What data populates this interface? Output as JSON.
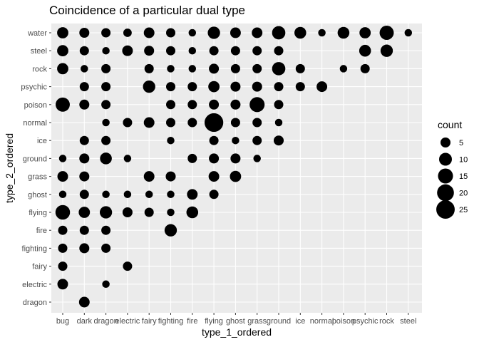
{
  "chart_data": {
    "type": "scatter",
    "title": "Coincidence of a particular dual type",
    "xlabel": "type_1_ordered",
    "ylabel": "type_2_ordered",
    "x_categories": [
      "bug",
      "dark",
      "dragon",
      "electric",
      "fairy",
      "fighting",
      "fire",
      "flying",
      "ghost",
      "grass",
      "ground",
      "ice",
      "normal",
      "poison",
      "psychic",
      "rock",
      "steel"
    ],
    "y_categories": [
      "dragon",
      "electric",
      "fairy",
      "fighting",
      "fire",
      "flying",
      "ghost",
      "grass",
      "ground",
      "ice",
      "normal",
      "poison",
      "psychic",
      "rock",
      "steel",
      "water"
    ],
    "size_variable": "count",
    "legend": {
      "title": "count",
      "values": [
        5,
        10,
        15,
        20,
        25
      ],
      "labels": [
        "5",
        "10",
        "15",
        "20",
        "25"
      ],
      "position": "right"
    },
    "grid": true,
    "points": [
      {
        "x": "bug",
        "y": "water",
        "count": 7
      },
      {
        "x": "dark",
        "y": "water",
        "count": 5
      },
      {
        "x": "dragon",
        "y": "water",
        "count": 4
      },
      {
        "x": "electric",
        "y": "water",
        "count": 3
      },
      {
        "x": "fairy",
        "y": "water",
        "count": 6
      },
      {
        "x": "fighting",
        "y": "water",
        "count": 4
      },
      {
        "x": "fire",
        "y": "water",
        "count": 2
      },
      {
        "x": "flying",
        "y": "water",
        "count": 9
      },
      {
        "x": "ghost",
        "y": "water",
        "count": 6
      },
      {
        "x": "grass",
        "y": "water",
        "count": 6
      },
      {
        "x": "ground",
        "y": "water",
        "count": 11
      },
      {
        "x": "ice",
        "y": "water",
        "count": 8
      },
      {
        "x": "normal",
        "y": "water",
        "count": 2
      },
      {
        "x": "poison",
        "y": "water",
        "count": 8
      },
      {
        "x": "psychic",
        "y": "water",
        "count": 7
      },
      {
        "x": "rock",
        "y": "water",
        "count": 13
      },
      {
        "x": "steel",
        "y": "water",
        "count": 2
      },
      {
        "x": "bug",
        "y": "steel",
        "count": 7
      },
      {
        "x": "dark",
        "y": "steel",
        "count": 4
      },
      {
        "x": "dragon",
        "y": "steel",
        "count": 2
      },
      {
        "x": "electric",
        "y": "steel",
        "count": 6
      },
      {
        "x": "fairy",
        "y": "steel",
        "count": 5
      },
      {
        "x": "fighting",
        "y": "steel",
        "count": 4
      },
      {
        "x": "fire",
        "y": "steel",
        "count": 2
      },
      {
        "x": "flying",
        "y": "steel",
        "count": 4
      },
      {
        "x": "ghost",
        "y": "steel",
        "count": 4
      },
      {
        "x": "grass",
        "y": "steel",
        "count": 4
      },
      {
        "x": "ground",
        "y": "steel",
        "count": 4
      },
      {
        "x": "psychic",
        "y": "steel",
        "count": 8
      },
      {
        "x": "rock",
        "y": "steel",
        "count": 9
      },
      {
        "x": "bug",
        "y": "rock",
        "count": 7
      },
      {
        "x": "dark",
        "y": "rock",
        "count": 2
      },
      {
        "x": "dragon",
        "y": "rock",
        "count": 4
      },
      {
        "x": "fairy",
        "y": "rock",
        "count": 4
      },
      {
        "x": "fighting",
        "y": "rock",
        "count": 2
      },
      {
        "x": "fire",
        "y": "rock",
        "count": 2
      },
      {
        "x": "flying",
        "y": "rock",
        "count": 5
      },
      {
        "x": "ghost",
        "y": "rock",
        "count": 4
      },
      {
        "x": "grass",
        "y": "rock",
        "count": 4
      },
      {
        "x": "ground",
        "y": "rock",
        "count": 11
      },
      {
        "x": "ice",
        "y": "rock",
        "count": 4
      },
      {
        "x": "poison",
        "y": "rock",
        "count": 2
      },
      {
        "x": "psychic",
        "y": "rock",
        "count": 4
      },
      {
        "x": "dark",
        "y": "psychic",
        "count": 4
      },
      {
        "x": "dragon",
        "y": "psychic",
        "count": 4
      },
      {
        "x": "fairy",
        "y": "psychic",
        "count": 9
      },
      {
        "x": "fighting",
        "y": "psychic",
        "count": 4
      },
      {
        "x": "fire",
        "y": "psychic",
        "count": 4
      },
      {
        "x": "flying",
        "y": "psychic",
        "count": 7
      },
      {
        "x": "ghost",
        "y": "psychic",
        "count": 5
      },
      {
        "x": "grass",
        "y": "psychic",
        "count": 5
      },
      {
        "x": "ground",
        "y": "psychic",
        "count": 4
      },
      {
        "x": "ice",
        "y": "psychic",
        "count": 4
      },
      {
        "x": "normal",
        "y": "psychic",
        "count": 6
      },
      {
        "x": "bug",
        "y": "poison",
        "count": 13
      },
      {
        "x": "dark",
        "y": "poison",
        "count": 5
      },
      {
        "x": "dragon",
        "y": "poison",
        "count": 4
      },
      {
        "x": "fighting",
        "y": "poison",
        "count": 4
      },
      {
        "x": "fire",
        "y": "poison",
        "count": 4
      },
      {
        "x": "flying",
        "y": "poison",
        "count": 5
      },
      {
        "x": "ghost",
        "y": "poison",
        "count": 5
      },
      {
        "x": "grass",
        "y": "poison",
        "count": 15
      },
      {
        "x": "ground",
        "y": "poison",
        "count": 4
      },
      {
        "x": "dragon",
        "y": "normal",
        "count": 2
      },
      {
        "x": "electric",
        "y": "normal",
        "count": 4
      },
      {
        "x": "fairy",
        "y": "normal",
        "count": 6
      },
      {
        "x": "fighting",
        "y": "normal",
        "count": 4
      },
      {
        "x": "fire",
        "y": "normal",
        "count": 4
      },
      {
        "x": "flying",
        "y": "normal",
        "count": 26
      },
      {
        "x": "ghost",
        "y": "normal",
        "count": 4
      },
      {
        "x": "grass",
        "y": "normal",
        "count": 4
      },
      {
        "x": "ground",
        "y": "normal",
        "count": 2
      },
      {
        "x": "dark",
        "y": "ice",
        "count": 4
      },
      {
        "x": "dragon",
        "y": "ice",
        "count": 4
      },
      {
        "x": "fighting",
        "y": "ice",
        "count": 2
      },
      {
        "x": "flying",
        "y": "ice",
        "count": 4
      },
      {
        "x": "ghost",
        "y": "ice",
        "count": 2
      },
      {
        "x": "grass",
        "y": "ice",
        "count": 4
      },
      {
        "x": "ground",
        "y": "ice",
        "count": 5
      },
      {
        "x": "bug",
        "y": "ground",
        "count": 2
      },
      {
        "x": "dark",
        "y": "ground",
        "count": 5
      },
      {
        "x": "dragon",
        "y": "ground",
        "count": 8
      },
      {
        "x": "electric",
        "y": "ground",
        "count": 2
      },
      {
        "x": "fire",
        "y": "ground",
        "count": 4
      },
      {
        "x": "flying",
        "y": "ground",
        "count": 5
      },
      {
        "x": "ghost",
        "y": "ground",
        "count": 5
      },
      {
        "x": "grass",
        "y": "ground",
        "count": 2
      },
      {
        "x": "bug",
        "y": "grass",
        "count": 6
      },
      {
        "x": "dark",
        "y": "grass",
        "count": 5
      },
      {
        "x": "fairy",
        "y": "grass",
        "count": 6
      },
      {
        "x": "fighting",
        "y": "grass",
        "count": 5
      },
      {
        "x": "flying",
        "y": "grass",
        "count": 6
      },
      {
        "x": "ghost",
        "y": "grass",
        "count": 7
      },
      {
        "x": "bug",
        "y": "ghost",
        "count": 2
      },
      {
        "x": "dark",
        "y": "ghost",
        "count": 4
      },
      {
        "x": "dragon",
        "y": "ghost",
        "count": 2
      },
      {
        "x": "electric",
        "y": "ghost",
        "count": 2
      },
      {
        "x": "fairy",
        "y": "ghost",
        "count": 2
      },
      {
        "x": "fighting",
        "y": "ghost",
        "count": 2
      },
      {
        "x": "fire",
        "y": "ghost",
        "count": 6
      },
      {
        "x": "flying",
        "y": "ghost",
        "count": 4
      },
      {
        "x": "bug",
        "y": "flying",
        "count": 14
      },
      {
        "x": "dark",
        "y": "flying",
        "count": 7
      },
      {
        "x": "dragon",
        "y": "flying",
        "count": 9
      },
      {
        "x": "electric",
        "y": "flying",
        "count": 5
      },
      {
        "x": "fairy",
        "y": "flying",
        "count": 4
      },
      {
        "x": "fighting",
        "y": "flying",
        "count": 2
      },
      {
        "x": "fire",
        "y": "flying",
        "count": 8
      },
      {
        "x": "bug",
        "y": "fire",
        "count": 4
      },
      {
        "x": "dark",
        "y": "fire",
        "count": 4
      },
      {
        "x": "dragon",
        "y": "fire",
        "count": 4
      },
      {
        "x": "fighting",
        "y": "fire",
        "count": 9
      },
      {
        "x": "bug",
        "y": "fighting",
        "count": 4
      },
      {
        "x": "dark",
        "y": "fighting",
        "count": 5
      },
      {
        "x": "dragon",
        "y": "fighting",
        "count": 4
      },
      {
        "x": "bug",
        "y": "fairy",
        "count": 4
      },
      {
        "x": "electric",
        "y": "fairy",
        "count": 4
      },
      {
        "x": "bug",
        "y": "electric",
        "count": 6
      },
      {
        "x": "dragon",
        "y": "electric",
        "count": 2
      },
      {
        "x": "dark",
        "y": "dragon",
        "count": 6
      }
    ]
  }
}
